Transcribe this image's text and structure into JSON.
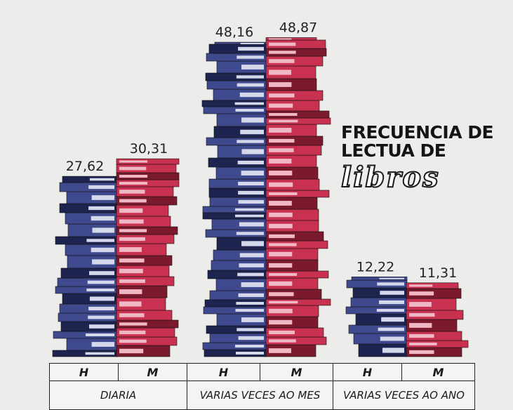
{
  "title": {
    "line1": "FRECUENCIA DE",
    "line2": "LECTUA DE",
    "line3": "libros"
  },
  "colors": {
    "men_book": "#3f4a8e",
    "men_dark": "#1d2450",
    "men_pages": "#d4d8ea",
    "women_book": "#c8314f",
    "women_dark": "#7a1a2c",
    "women_pages": "#f0b8c4",
    "background": "#ececea"
  },
  "chart_data": {
    "type": "bar",
    "title": "FRECUENCIA DE LECTUA DE libros",
    "categories": [
      "DIARIA",
      "VARIAS VECES AO MES",
      "VARIAS VECES AO ANO"
    ],
    "series": [
      {
        "name": "H",
        "values": [
          27.62,
          48.16,
          12.22
        ]
      },
      {
        "name": "M",
        "values": [
          30.31,
          48.87,
          11.31
        ]
      }
    ],
    "value_labels": [
      [
        "27,62",
        "30,31"
      ],
      [
        "48,16",
        "48,87"
      ],
      [
        "12,22",
        "11,31"
      ]
    ],
    "ylim": [
      0,
      50
    ],
    "grid": false,
    "legend": "none"
  }
}
